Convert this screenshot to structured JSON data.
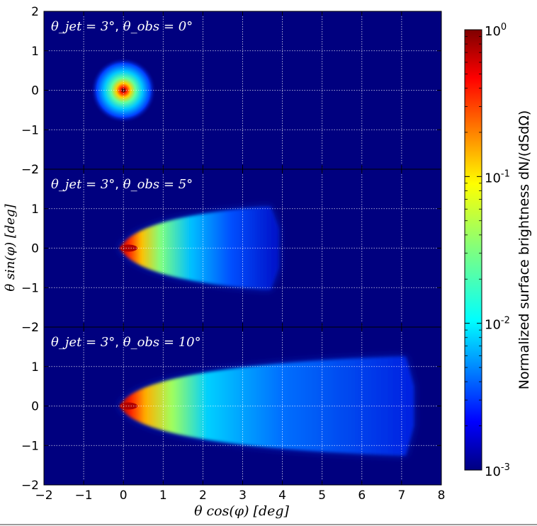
{
  "chart_data": {
    "type": "heatmap",
    "xlabel": "θ cos(φ) [deg]",
    "ylabel": "θ sin(φ) [deg]",
    "xlim": [
      -2,
      8
    ],
    "x_ticks": [
      "−2",
      "−1",
      "0",
      "1",
      "2",
      "3",
      "4",
      "5",
      "6",
      "7",
      "8"
    ],
    "y_ticks": [
      "−2",
      "−1",
      "0",
      "1",
      "2"
    ],
    "ylim": [
      -2,
      2
    ],
    "grid": true,
    "panels": [
      {
        "label": {
          "theta_jet": "θ_jet = 3°",
          "theta_obs": "θ_obs = 0°"
        },
        "theta_jet_deg": 3,
        "theta_obs_deg": 0
      },
      {
        "label": {
          "theta_jet": "θ_jet = 3°",
          "theta_obs": "θ_obs = 5°"
        },
        "theta_jet_deg": 3,
        "theta_obs_deg": 5
      },
      {
        "label": {
          "theta_jet": "θ_jet = 3°",
          "theta_obs": "θ_obs = 10°"
        },
        "theta_jet_deg": 3,
        "theta_obs_deg": 10
      }
    ],
    "colorbar": {
      "label": "Normalized surface brightness dN/(dSdΩ)",
      "scale": "log",
      "range": [
        0.001,
        1
      ],
      "ticks": [
        {
          "value": 1,
          "base": "10",
          "exp": "0"
        },
        {
          "value": 0.1,
          "base": "10",
          "exp": "-1"
        },
        {
          "value": 0.01,
          "base": "10",
          "exp": "-2"
        },
        {
          "value": 0.001,
          "base": "10",
          "exp": "-3"
        }
      ],
      "colormap": "jet"
    }
  }
}
